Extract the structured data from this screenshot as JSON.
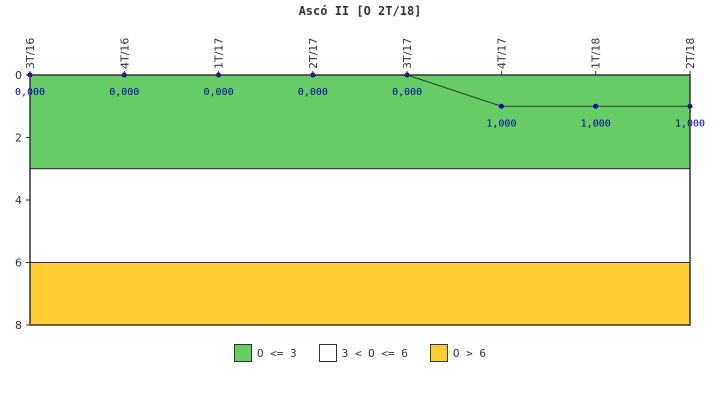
{
  "chart_data": {
    "type": "line",
    "title": "Ascó II [O 2T/18]",
    "categories": [
      "3T/16",
      "4T/16",
      "1T/17",
      "2T/17",
      "3T/17",
      "4T/17",
      "1T/18",
      "2T/18"
    ],
    "series": [
      {
        "values": [
          0,
          0,
          0,
          0,
          0,
          1,
          1,
          1
        ]
      }
    ],
    "data_labels": [
      "0,000",
      "0,000",
      "0,000",
      "0,000",
      "0,000",
      "1,000",
      "1,000",
      "1,000"
    ],
    "y_ticks": [
      "0",
      "2",
      "4",
      "6",
      "8"
    ],
    "ylim": [
      0,
      8
    ],
    "y_inverted": true,
    "bands": [
      {
        "from": 0,
        "to": 3,
        "color": "#66cc66",
        "label": "O <= 3"
      },
      {
        "from": 3,
        "to": 6,
        "color": "#ffffff",
        "label": "3 < O <= 6"
      },
      {
        "from": 6,
        "to": 8,
        "color": "#ffcc33",
        "label": "O > 6"
      }
    ],
    "line_color": "#333333",
    "marker_color": "#0000aa",
    "legend_position": "bottom"
  }
}
